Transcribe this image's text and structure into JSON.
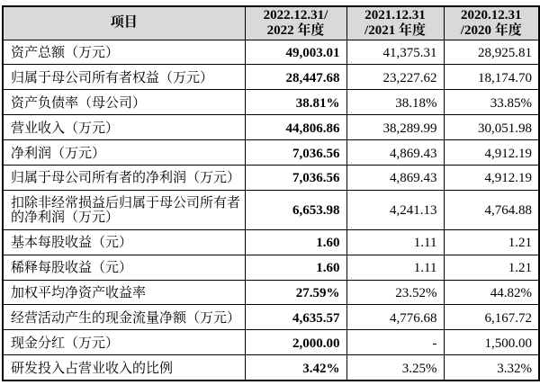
{
  "page": {
    "background": "#ffffff"
  },
  "table": {
    "header_bg": "#d9d9d9",
    "border_color": "#000000",
    "header": {
      "item": "项目",
      "y2022_line1": "2022.12.31/",
      "y2022_line2": "2022 年度",
      "y2021_line1": "2021.12.31",
      "y2021_line2": "/2021 年度",
      "y2020_line1": "2020.12.31",
      "y2020_line2": "/2020 年度"
    },
    "rows": [
      {
        "label": "资产总额（万元）",
        "v2022": "49,003.01",
        "v2021": "41,375.31",
        "v2020": "28,925.81"
      },
      {
        "label": "归属于母公司所有者权益（万元）",
        "v2022": "28,447.68",
        "v2021": "23,227.62",
        "v2020": "18,174.70"
      },
      {
        "label": "资产负债率（母公司）",
        "v2022": "38.81%",
        "v2021": "38.18%",
        "v2020": "33.85%"
      },
      {
        "label": "营业收入（万元）",
        "v2022": "44,806.86",
        "v2021": "38,289.99",
        "v2020": "30,051.98"
      },
      {
        "label": "净利润（万元）",
        "v2022": "7,036.56",
        "v2021": "4,869.43",
        "v2020": "4,912.19"
      },
      {
        "label": "归属于母公司所有者的净利润（万元）",
        "v2022": "7,036.56",
        "v2021": "4,869.43",
        "v2020": "4,912.19"
      },
      {
        "label": "扣除非经常损益后归属于母公司所有者的净利润（万元）",
        "v2022": "6,653.98",
        "v2021": "4,241.13",
        "v2020": "4,764.88"
      },
      {
        "label": "基本每股收益（元）",
        "v2022": "1.60",
        "v2021": "1.11",
        "v2020": "1.21"
      },
      {
        "label": "稀释每股收益（元）",
        "v2022": "1.60",
        "v2021": "1.11",
        "v2020": "1.21"
      },
      {
        "label": "加权平均净资产收益率",
        "v2022": "27.59%",
        "v2021": "23.52%",
        "v2020": "44.82%"
      },
      {
        "label": "经营活动产生的现金流量净额（万元）",
        "v2022": "4,635.57",
        "v2021": "4,776.68",
        "v2020": "6,167.72"
      },
      {
        "label": "现金分红（万元）",
        "v2022": "2,000.00",
        "v2021": "-",
        "v2020": "1,500.00"
      },
      {
        "label": "研发投入占营业收入的比例",
        "v2022": "3.42%",
        "v2021": "3.25%",
        "v2020": "3.32%"
      }
    ]
  }
}
